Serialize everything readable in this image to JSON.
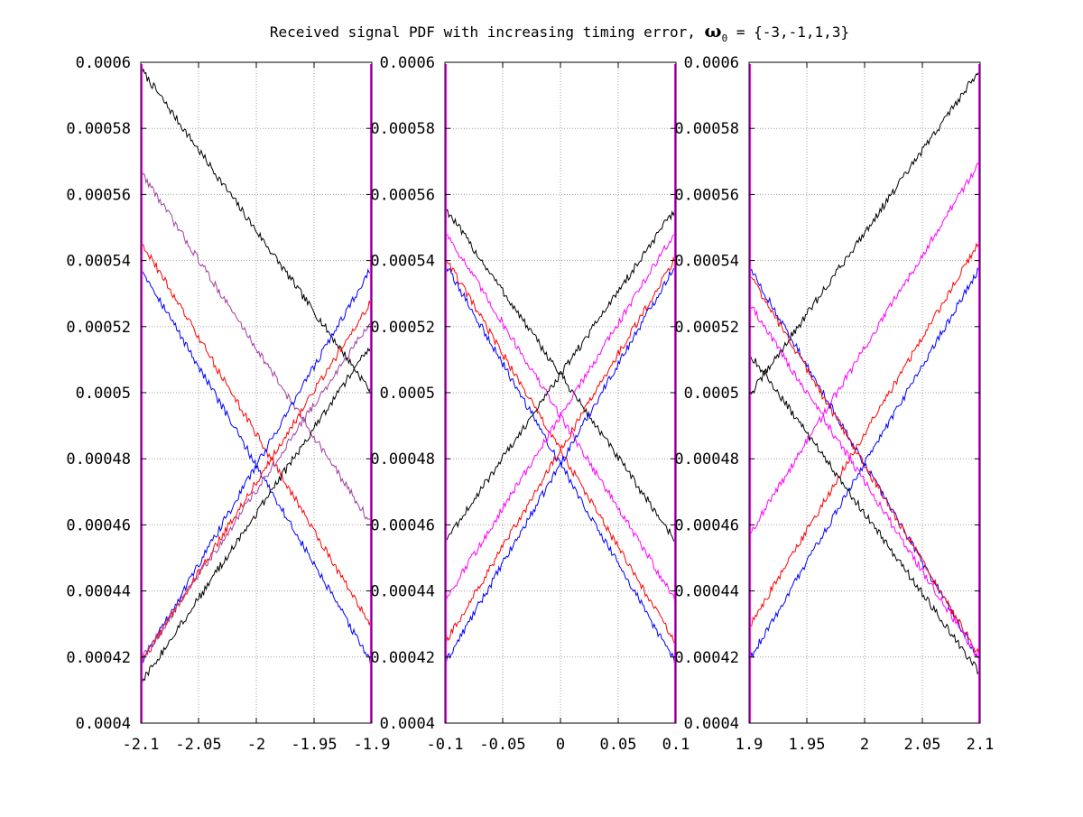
{
  "title": {
    "prefix": "Received signal PDF with increasing timing error, ",
    "symbol": "ω",
    "subscript": "0",
    "suffix": " = {-3,-1,1,3}"
  },
  "colors": {
    "axes": "#000000",
    "grid": "#a0a0a0",
    "black": "#000000",
    "magenta": "#ff00ff",
    "purple": "#a040a0",
    "red": "#ff0000",
    "blue": "#0000ff"
  },
  "chart_data": [
    {
      "type": "line",
      "title": "",
      "xlabel": "",
      "ylabel": "",
      "xlim": [
        -2.1,
        -1.9
      ],
      "ylim": [
        0.0004,
        0.0006
      ],
      "grid": true,
      "xticks": [
        "-2.1",
        "-2.05",
        "-2",
        "-1.95",
        "-1.9"
      ],
      "xtick_values": [
        -2.1,
        -2.05,
        -2.0,
        -1.95,
        -1.9
      ],
      "yticks": [
        "0.0004",
        "0.00042",
        "0.00044",
        "0.00046",
        "0.00048",
        "0.0005",
        "0.00052",
        "0.00054",
        "0.00056",
        "0.00058",
        "0.0006"
      ],
      "ytick_values": [
        0.0004,
        0.00042,
        0.00044,
        0.00046,
        0.00048,
        0.0005,
        0.00052,
        0.00054,
        0.00056,
        0.00058,
        0.0006
      ],
      "series": [
        {
          "color": "black",
          "x": [
            -2.1,
            -1.9
          ],
          "y": [
            0.000598,
            0.0005
          ]
        },
        {
          "color": "purple",
          "x": [
            -2.1,
            -1.9
          ],
          "y": [
            0.000567,
            0.00046
          ]
        },
        {
          "color": "red",
          "x": [
            -2.1,
            -1.9
          ],
          "y": [
            0.000546,
            0.000429
          ]
        },
        {
          "color": "blue",
          "x": [
            -2.1,
            -1.9
          ],
          "y": [
            0.000538,
            0.000418
          ]
        },
        {
          "color": "blue",
          "x": [
            -2.1,
            -1.9
          ],
          "y": [
            0.000418,
            0.000538
          ]
        },
        {
          "color": "red",
          "x": [
            -2.1,
            -1.9
          ],
          "y": [
            0.000418,
            0.000528
          ]
        },
        {
          "color": "purple",
          "x": [
            -2.1,
            -1.9
          ],
          "y": [
            0.000419,
            0.000522
          ]
        },
        {
          "color": "black",
          "x": [
            -2.1,
            -1.9
          ],
          "y": [
            0.000412,
            0.000515
          ]
        }
      ]
    },
    {
      "type": "line",
      "title": "",
      "xlabel": "",
      "ylabel": "",
      "xlim": [
        -0.1,
        0.1
      ],
      "ylim": [
        0.0004,
        0.0006
      ],
      "grid": true,
      "xticks": [
        "-0.1",
        "-0.05",
        "0",
        "0.05",
        "0.1"
      ],
      "xtick_values": [
        -0.1,
        -0.05,
        0.0,
        0.05,
        0.1
      ],
      "yticks": [
        "0.0004",
        "0.00042",
        "0.00044",
        "0.00046",
        "0.00048",
        "0.0005",
        "0.00052",
        "0.00054",
        "0.00056",
        "0.00058",
        "0.0006"
      ],
      "ytick_values": [
        0.0004,
        0.00042,
        0.00044,
        0.00046,
        0.00048,
        0.0005,
        0.00052,
        0.00054,
        0.00056,
        0.00058,
        0.0006
      ],
      "series": [
        {
          "color": "black",
          "x": [
            -0.1,
            0.1
          ],
          "y": [
            0.000556,
            0.000455
          ]
        },
        {
          "color": "magenta",
          "x": [
            -0.1,
            0.1
          ],
          "y": [
            0.000549,
            0.000437
          ]
        },
        {
          "color": "red",
          "x": [
            -0.1,
            0.1
          ],
          "y": [
            0.000541,
            0.000424
          ]
        },
        {
          "color": "blue",
          "x": [
            -0.1,
            0.1
          ],
          "y": [
            0.000539,
            0.000418
          ]
        },
        {
          "color": "blue",
          "x": [
            -0.1,
            0.1
          ],
          "y": [
            0.000418,
            0.000539
          ]
        },
        {
          "color": "red",
          "x": [
            -0.1,
            0.1
          ],
          "y": [
            0.000424,
            0.000541
          ]
        },
        {
          "color": "magenta",
          "x": [
            -0.1,
            0.1
          ],
          "y": [
            0.000437,
            0.000549
          ]
        },
        {
          "color": "black",
          "x": [
            -0.1,
            0.1
          ],
          "y": [
            0.000455,
            0.000556
          ]
        }
      ]
    },
    {
      "type": "line",
      "title": "",
      "xlabel": "",
      "ylabel": "",
      "xlim": [
        1.9,
        2.1
      ],
      "ylim": [
        0.0004,
        0.0006
      ],
      "grid": true,
      "xticks": [
        "1.9",
        "1.95",
        "2",
        "2.05",
        "2.1"
      ],
      "xtick_values": [
        1.9,
        1.95,
        2.0,
        2.05,
        2.1
      ],
      "yticks": [
        "0.0004",
        "0.00042",
        "0.00044",
        "0.00046",
        "0.00048",
        "0.0005",
        "0.00052",
        "0.00054",
        "0.00056",
        "0.00058",
        "0.0006"
      ],
      "ytick_values": [
        0.0004,
        0.00042,
        0.00044,
        0.00046,
        0.00048,
        0.0005,
        0.00052,
        0.00054,
        0.00056,
        0.00058,
        0.0006
      ],
      "series": [
        {
          "color": "black",
          "x": [
            1.9,
            2.1
          ],
          "y": [
            0.000499,
            0.000598
          ]
        },
        {
          "color": "magenta",
          "x": [
            1.9,
            2.1
          ],
          "y": [
            0.000457,
            0.00057
          ]
        },
        {
          "color": "red",
          "x": [
            1.9,
            2.1
          ],
          "y": [
            0.000429,
            0.000546
          ]
        },
        {
          "color": "blue",
          "x": [
            1.9,
            2.1
          ],
          "y": [
            0.000419,
            0.000538
          ]
        },
        {
          "color": "blue",
          "x": [
            1.9,
            2.1
          ],
          "y": [
            0.000538,
            0.000419
          ]
        },
        {
          "color": "red",
          "x": [
            1.9,
            2.1
          ],
          "y": [
            0.000536,
            0.00042
          ]
        },
        {
          "color": "magenta",
          "x": [
            1.9,
            2.1
          ],
          "y": [
            0.000527,
            0.000419
          ]
        },
        {
          "color": "black",
          "x": [
            1.9,
            2.1
          ],
          "y": [
            0.000512,
            0.000415
          ]
        }
      ]
    }
  ]
}
